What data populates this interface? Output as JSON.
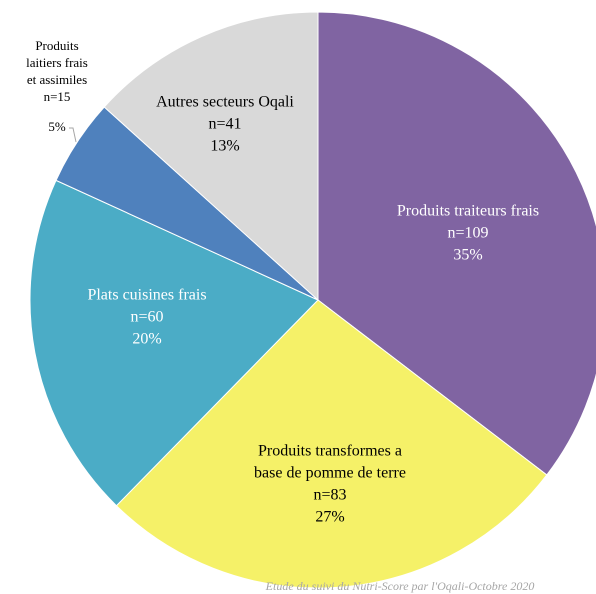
{
  "chart_data": {
    "type": "pie",
    "categories": [
      [
        "Produits traiteurs frais"
      ],
      [
        "Produits transformes a",
        "base de pomme de terre"
      ],
      [
        "Plats cuisines frais"
      ],
      [
        "Produits",
        "laitiers frais",
        "et assimiles"
      ],
      [
        "Autres secteurs Oqali"
      ]
    ],
    "values": [
      109,
      83,
      60,
      15,
      41
    ],
    "value_labels": [
      "n=109",
      "n=83",
      "n=60",
      "n=15",
      "n=41"
    ],
    "percentages": [
      35,
      27,
      20,
      5,
      13
    ],
    "percentage_labels": [
      "35%",
      "27%",
      "20%",
      "5%",
      "13%"
    ],
    "colors": [
      "#8064a2",
      "#f5f168",
      "#4bacc6",
      "#4f81bd",
      "#d9d9d9"
    ],
    "note": "Etude du suivi du Nutri-Score par l'Oqali-Octobre 2020"
  }
}
